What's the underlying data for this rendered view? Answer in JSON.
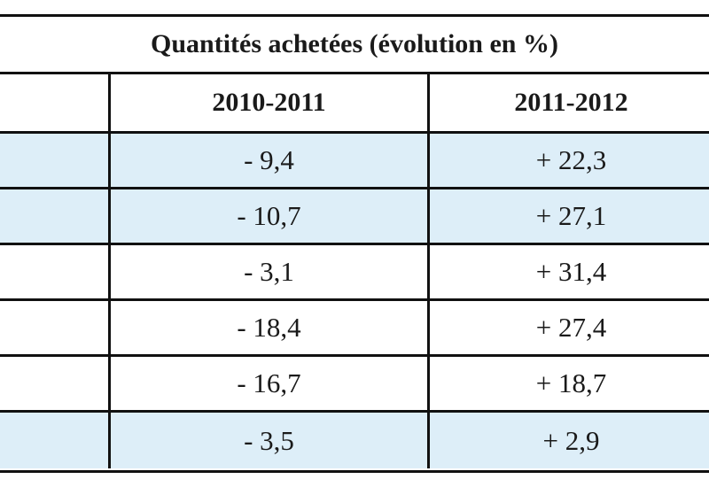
{
  "table": {
    "title": "Quantités achetées (évolution en %)",
    "columns": [
      "",
      "2010-2011",
      "2011-2012"
    ],
    "rows": [
      {
        "label": "",
        "v1": "- 9,4",
        "v2": "+ 22,3",
        "shaded": true
      },
      {
        "label": "",
        "v1": "- 10,7",
        "v2": "+ 27,1",
        "shaded": true
      },
      {
        "label": "",
        "v1": "- 3,1",
        "v2": "+ 31,4",
        "shaded": false
      },
      {
        "label": "",
        "v1": "- 18,4",
        "v2": "+ 27,4",
        "shaded": false
      },
      {
        "label": "",
        "v1": "- 16,7",
        "v2": "+ 18,7",
        "shaded": false
      },
      {
        "label": "",
        "v1": "- 3,5",
        "v2": "+ 2,9",
        "shaded": true
      }
    ],
    "shade_color": "#ddeef8"
  }
}
